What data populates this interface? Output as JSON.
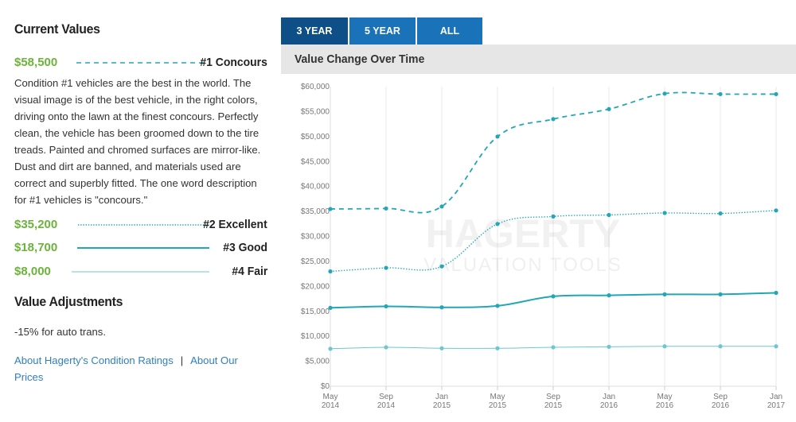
{
  "left": {
    "current_values_title": "Current Values",
    "legend": [
      {
        "price": "$58,500",
        "label": "#1 Concours",
        "style": "dashed",
        "color": "#21a7b5"
      },
      {
        "price": "$35,200",
        "label": "#2 Excellent",
        "style": "dotted",
        "color": "#21a7b5"
      },
      {
        "price": "$18,700",
        "label": "#3 Good",
        "style": "solid",
        "color": "#21a7b5"
      },
      {
        "price": "$8,000",
        "label": "#4 Fair",
        "style": "thin",
        "color": "#6cc7cf"
      }
    ],
    "description": "Condition #1 vehicles are the best in the world. The visual image is of the best vehicle, in the right colors, driving onto the lawn at the finest concours. Perfectly clean, the vehicle has been groomed down to the tire treads. Painted and chromed surfaces are mirror-like. Dust and dirt are banned, and materials used are correct and superbly fitted. The one word description for #1 vehicles is \"concours.\"",
    "value_adjustments_title": "Value Adjustments",
    "adjustment": "-15% for auto trans.",
    "link_ratings": "About Hagerty's Condition Ratings",
    "link_separator": "|",
    "link_prices": "About Our Prices"
  },
  "tabs": [
    {
      "label": "3 YEAR",
      "active": true
    },
    {
      "label": "5 YEAR",
      "active": false
    },
    {
      "label": "ALL",
      "active": false
    }
  ],
  "chart_title": "Value Change Over Time",
  "watermark": {
    "brand": "HAGERTY",
    "sub": "VALUATION TOOLS"
  },
  "colors": {
    "accent": "#21a7b5",
    "price_green": "#6bb33a",
    "tab_blue": "#1a72b8",
    "tab_active": "#0d4f86",
    "link": "#2f7fc1"
  },
  "chart_data": {
    "type": "line",
    "title": "Value Change Over Time",
    "x": [
      {
        "month": "May",
        "year": "2014"
      },
      {
        "month": "Sep",
        "year": "2014"
      },
      {
        "month": "Jan",
        "year": "2015"
      },
      {
        "month": "May",
        "year": "2015"
      },
      {
        "month": "Sep",
        "year": "2015"
      },
      {
        "month": "Jan",
        "year": "2016"
      },
      {
        "month": "May",
        "year": "2016"
      },
      {
        "month": "Sep",
        "year": "2016"
      },
      {
        "month": "Jan",
        "year": "2017"
      }
    ],
    "ylim": [
      0,
      60000
    ],
    "yticks": [
      "$0",
      "$5,000",
      "$10,000",
      "$15,000",
      "$20,000",
      "$25,000",
      "$30,000",
      "$35,000",
      "$40,000",
      "$45,000",
      "$50,000",
      "$55,000",
      "$60,000"
    ],
    "grid": "vertical",
    "series": [
      {
        "name": "#1 Concours",
        "style": "dashed",
        "values": [
          35500,
          35600,
          36000,
          50000,
          53500,
          55500,
          58600,
          58500,
          58500
        ]
      },
      {
        "name": "#2 Excellent",
        "style": "dotted",
        "values": [
          23000,
          23700,
          24000,
          32500,
          34000,
          34300,
          34700,
          34600,
          35200
        ]
      },
      {
        "name": "#3 Good",
        "style": "solid",
        "values": [
          15700,
          16000,
          15800,
          16100,
          18000,
          18200,
          18400,
          18400,
          18700
        ]
      },
      {
        "name": "#4 Fair",
        "style": "thin",
        "values": [
          7500,
          7800,
          7600,
          7600,
          7800,
          7900,
          8000,
          8000,
          8000
        ]
      }
    ]
  }
}
